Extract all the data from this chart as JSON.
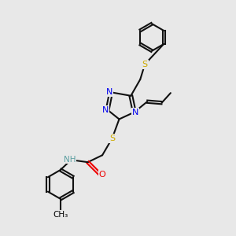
{
  "background_color": "#e8e8e8",
  "atom_colors": {
    "N": "#0000ee",
    "S": "#ccaa00",
    "O": "#ee0000",
    "C": "#000000",
    "H": "#5a9ea0"
  },
  "bond_color": "#111111",
  "bond_lw": 1.5,
  "fs": 8.0
}
